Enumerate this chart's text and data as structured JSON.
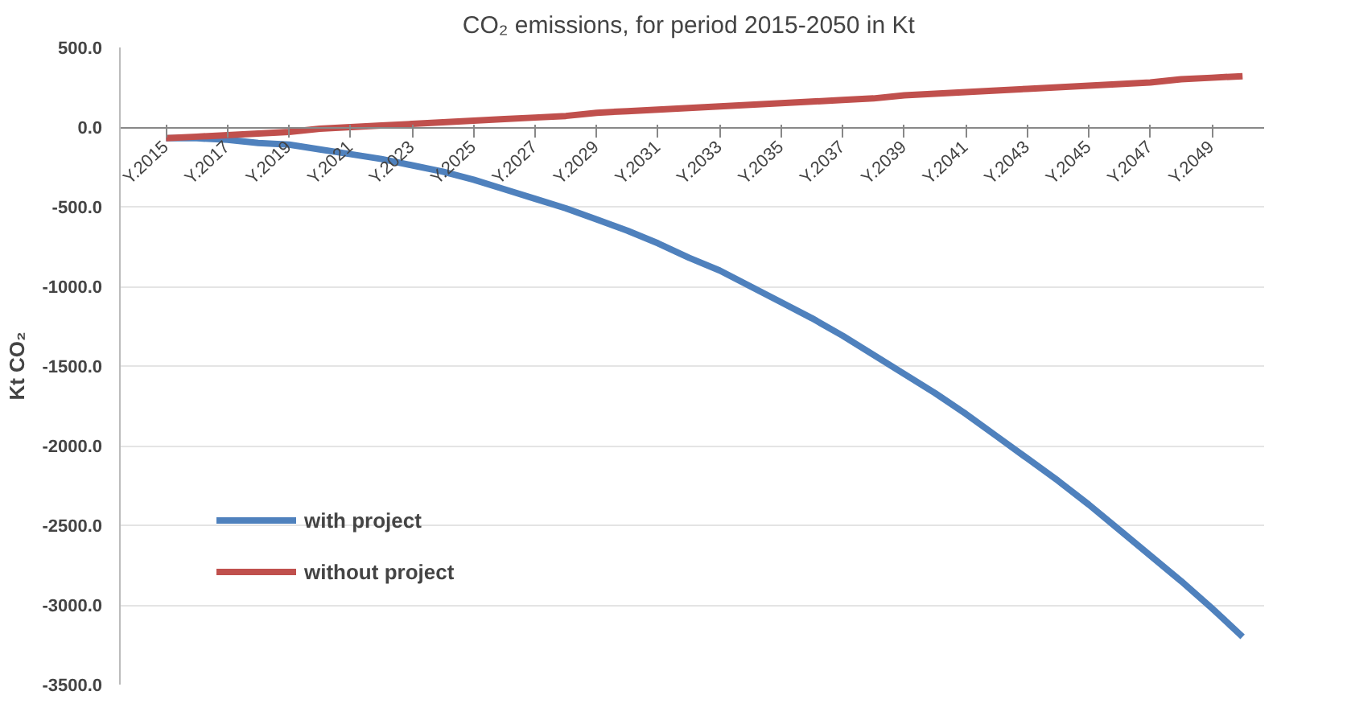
{
  "chart_data": {
    "type": "line",
    "title": "CO₂ emissions, for period 2015-2050  in Kt",
    "ylabel": "Kt CO₂",
    "categories": [
      "Y.2015",
      null,
      "Y.2017",
      null,
      "Y.2019",
      null,
      "Y.2021",
      null,
      "Y.2023",
      null,
      "Y.2025",
      null,
      "Y.2027",
      null,
      "Y.2029",
      null,
      "Y.2031",
      null,
      "Y.2033",
      null,
      "Y.2035",
      null,
      "Y.2037",
      null,
      "Y.2039",
      null,
      "Y.2041",
      null,
      "Y.2043",
      null,
      "Y.2045",
      null,
      "Y.2047",
      null,
      "Y.2049",
      null
    ],
    "series": [
      {
        "name": "with project",
        "color": "#4f81bd",
        "values": [
          -70,
          -70,
          -80,
          -100,
          -110,
          -140,
          -170,
          -200,
          -240,
          -280,
          -330,
          -390,
          -450,
          -510,
          -580,
          -650,
          -730,
          -820,
          -900,
          -1000,
          -1100,
          -1200,
          -1310,
          -1430,
          -1550,
          -1670,
          -1800,
          -1940,
          -2080,
          -2220,
          -2370,
          -2530,
          -2690,
          -2850,
          -3020,
          -3200
        ]
      },
      {
        "name": "without project",
        "color": "#c0504d",
        "values": [
          -70,
          -60,
          -50,
          -40,
          -30,
          -10,
          0,
          10,
          20,
          30,
          40,
          50,
          60,
          70,
          90,
          100,
          110,
          120,
          130,
          140,
          150,
          160,
          170,
          180,
          200,
          210,
          220,
          230,
          240,
          250,
          260,
          270,
          280,
          300,
          310,
          320
        ]
      }
    ],
    "ylim": [
      -3500,
      500
    ],
    "yticks": [
      {
        "value": 500,
        "label": "500.0"
      },
      {
        "value": 0,
        "label": "0.0"
      },
      {
        "value": -500,
        "label": "-500.0"
      },
      {
        "value": -1000,
        "label": "-1000.0"
      },
      {
        "value": -1500,
        "label": "-1500.0"
      },
      {
        "value": -2000,
        "label": "-2000.0"
      },
      {
        "value": -2500,
        "label": "-2500.0"
      },
      {
        "value": -3000,
        "label": "-3000.0"
      },
      {
        "value": -3500,
        "label": "-3500.0"
      }
    ],
    "grid": "y",
    "legend": "bottom left",
    "marker": "none",
    "line_style": "solid"
  }
}
